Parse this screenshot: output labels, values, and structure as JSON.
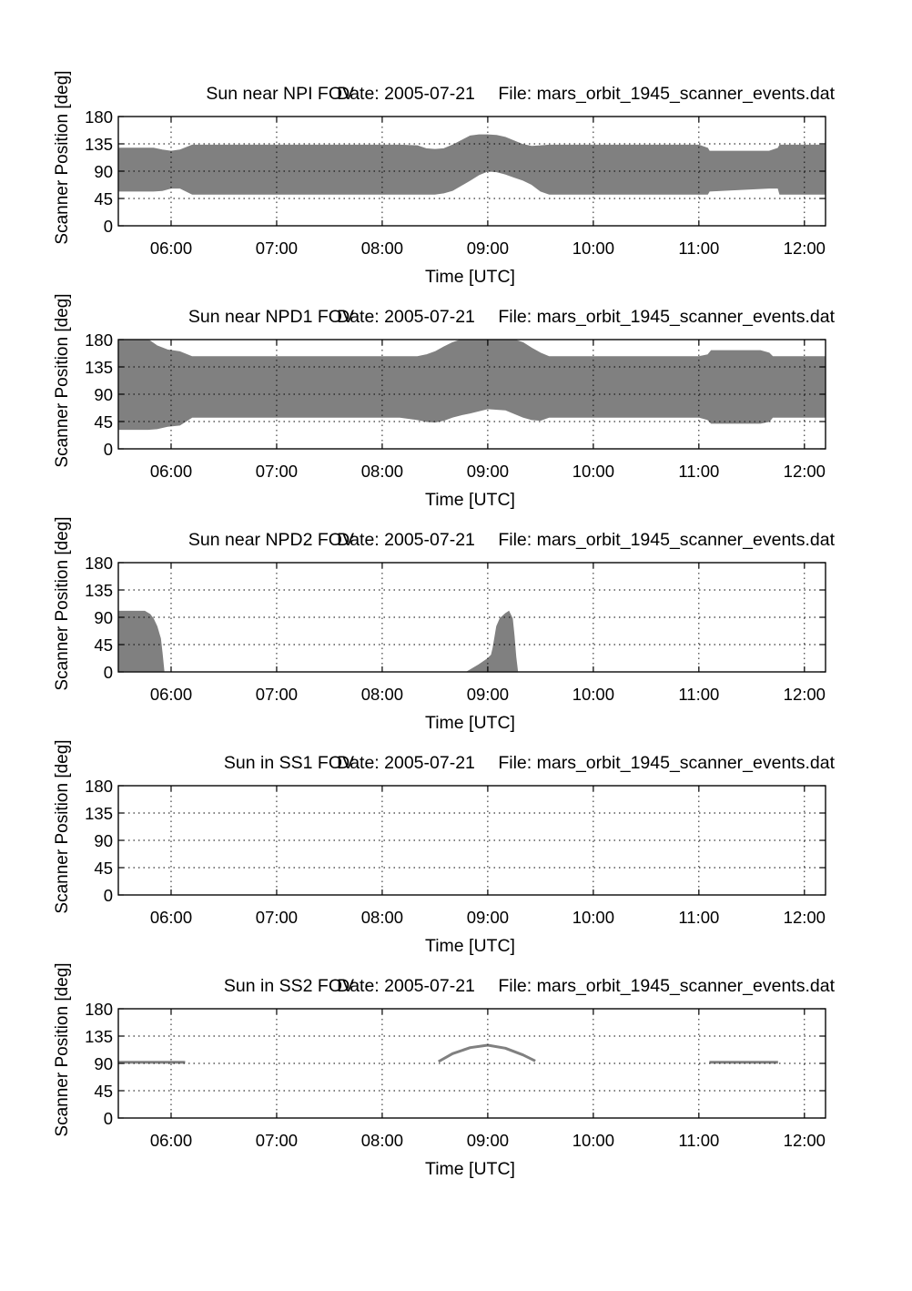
{
  "chart_data": [
    {
      "type": "area",
      "title": "Sun near NPI FOV",
      "date_text": "Date: 2005-07-21",
      "file_text": "File: mars_orbit_1945_scanner_events.dat",
      "xlabel": "Time [UTC]",
      "ylabel": "Scanner Position [deg]",
      "xlim": [
        "05:30",
        "12:12"
      ],
      "ylim": [
        0,
        180
      ],
      "grid": true,
      "xtick_labels": [
        "06:00",
        "07:00",
        "08:00",
        "09:00",
        "10:00",
        "11:00",
        "12:00"
      ],
      "ytick_labels": [
        "0",
        "45",
        "90",
        "135",
        "180"
      ],
      "color": "#808080",
      "bands": [
        {
          "x": [
            "05:30",
            "05:50",
            "05:55",
            "06:00",
            "06:05",
            "06:12",
            "08:10",
            "08:20",
            "08:25",
            "08:30",
            "08:35",
            "08:40",
            "08:50",
            "08:55",
            "09:00",
            "09:05",
            "09:10",
            "09:15",
            "09:20",
            "09:25",
            "09:30",
            "09:35",
            "11:00",
            "11:05",
            "11:06",
            "11:40",
            "11:45",
            "11:46",
            "12:12"
          ],
          "upper": [
            128,
            128,
            125,
            123,
            125,
            133,
            133,
            132,
            127,
            126,
            127,
            133,
            148,
            150,
            150,
            149,
            146,
            140,
            134,
            131,
            132,
            133,
            133,
            128,
            123,
            123,
            128,
            133,
            133
          ],
          "lower": [
            57,
            57,
            58,
            62,
            62,
            52,
            52,
            52,
            52,
            52,
            54,
            58,
            75,
            84,
            90,
            89,
            85,
            80,
            75,
            68,
            57,
            52,
            52,
            52,
            57,
            62,
            62,
            52,
            52
          ]
        }
      ]
    },
    {
      "type": "area",
      "title": "Sun near NPD1 FOV",
      "date_text": "Date: 2005-07-21",
      "file_text": "File: mars_orbit_1945_scanner_events.dat",
      "xlabel": "Time [UTC]",
      "ylabel": "Scanner Position [deg]",
      "xlim": [
        "05:30",
        "12:12"
      ],
      "ylim": [
        0,
        180
      ],
      "grid": true,
      "xtick_labels": [
        "06:00",
        "07:00",
        "08:00",
        "09:00",
        "10:00",
        "11:00",
        "12:00"
      ],
      "ytick_labels": [
        "0",
        "45",
        "90",
        "135",
        "180"
      ],
      "color": "#808080",
      "bands": [
        {
          "x": [
            "05:30",
            "05:47",
            "05:52",
            "05:58",
            "06:05",
            "06:12",
            "08:10",
            "08:20",
            "08:25",
            "08:30",
            "08:35",
            "08:40",
            "08:45",
            "08:50",
            "09:00",
            "09:10",
            "09:15",
            "09:20",
            "09:25",
            "09:30",
            "09:35",
            "11:00",
            "11:05",
            "11:07",
            "11:35",
            "11:40",
            "11:42",
            "12:12"
          ],
          "upper": [
            180,
            180,
            170,
            163,
            160,
            152,
            152,
            152,
            155,
            160,
            168,
            175,
            180,
            180,
            180,
            180,
            180,
            175,
            166,
            158,
            152,
            152,
            155,
            162,
            162,
            158,
            152,
            152
          ],
          "lower": [
            32,
            32,
            33,
            37,
            39,
            52,
            52,
            48,
            45,
            44,
            47,
            52,
            56,
            59,
            66,
            64,
            58,
            52,
            48,
            47,
            52,
            52,
            48,
            42,
            42,
            45,
            52,
            52
          ]
        }
      ]
    },
    {
      "type": "area",
      "title": "Sun near NPD2 FOV",
      "date_text": "Date: 2005-07-21",
      "file_text": "File: mars_orbit_1945_scanner_events.dat",
      "xlabel": "Time [UTC]",
      "ylabel": "Scanner Position [deg]",
      "xlim": [
        "05:30",
        "12:12"
      ],
      "ylim": [
        0,
        180
      ],
      "grid": true,
      "xtick_labels": [
        "06:00",
        "07:00",
        "08:00",
        "09:00",
        "10:00",
        "11:00",
        "12:00"
      ],
      "ytick_labels": [
        "0",
        "45",
        "90",
        "135",
        "180"
      ],
      "color": "#808080",
      "bands": [
        {
          "x": [
            "05:30",
            "05:45",
            "05:48",
            "05:50",
            "05:52",
            "05:54",
            "05:55",
            "05:56"
          ],
          "upper": [
            100,
            100,
            95,
            87,
            75,
            55,
            30,
            0
          ],
          "lower": [
            0,
            0,
            0,
            0,
            0,
            0,
            0,
            0
          ]
        },
        {
          "x": [
            "08:48",
            "08:55",
            "09:00",
            "09:02",
            "09:03",
            "09:05",
            "09:07",
            "09:10",
            "09:12",
            "09:14",
            "09:15",
            "09:16",
            "09:17"
          ],
          "upper": [
            0,
            12,
            22,
            28,
            40,
            75,
            88,
            96,
            100,
            88,
            60,
            25,
            0
          ],
          "lower": [
            0,
            0,
            0,
            0,
            0,
            0,
            0,
            0,
            0,
            0,
            0,
            0,
            0
          ]
        }
      ]
    },
    {
      "type": "area",
      "title": "Sun in SS1 FOV",
      "date_text": "Date: 2005-07-21",
      "file_text": "File: mars_orbit_1945_scanner_events.dat",
      "xlabel": "Time [UTC]",
      "ylabel": "Scanner Position [deg]",
      "xlim": [
        "05:30",
        "12:12"
      ],
      "ylim": [
        0,
        180
      ],
      "grid": true,
      "xtick_labels": [
        "06:00",
        "07:00",
        "08:00",
        "09:00",
        "10:00",
        "11:00",
        "12:00"
      ],
      "ytick_labels": [
        "0",
        "45",
        "90",
        "135",
        "180"
      ],
      "color": "#808080",
      "bands": []
    },
    {
      "type": "line",
      "title": "Sun in SS2 FOV",
      "date_text": "Date: 2005-07-21",
      "file_text": "File: mars_orbit_1945_scanner_events.dat",
      "xlabel": "Time [UTC]",
      "ylabel": "Scanner Position [deg]",
      "xlim": [
        "05:30",
        "12:12"
      ],
      "ylim": [
        0,
        180
      ],
      "grid": true,
      "xtick_labels": [
        "06:00",
        "07:00",
        "08:00",
        "09:00",
        "10:00",
        "11:00",
        "12:00"
      ],
      "ytick_labels": [
        "0",
        "45",
        "90",
        "135",
        "180"
      ],
      "color": "#808080",
      "lines": [
        {
          "x": [
            "05:30",
            "05:45",
            "06:00",
            "06:08"
          ],
          "y": [
            92,
            92,
            92,
            92
          ]
        },
        {
          "x": [
            "08:32",
            "08:40",
            "08:50",
            "09:00",
            "09:10",
            "09:20",
            "09:27"
          ],
          "y": [
            93,
            106,
            116,
            120,
            115,
            104,
            94
          ]
        },
        {
          "x": [
            "11:06",
            "11:20",
            "11:40",
            "11:45"
          ],
          "y": [
            92,
            92,
            92,
            92
          ]
        }
      ]
    }
  ]
}
